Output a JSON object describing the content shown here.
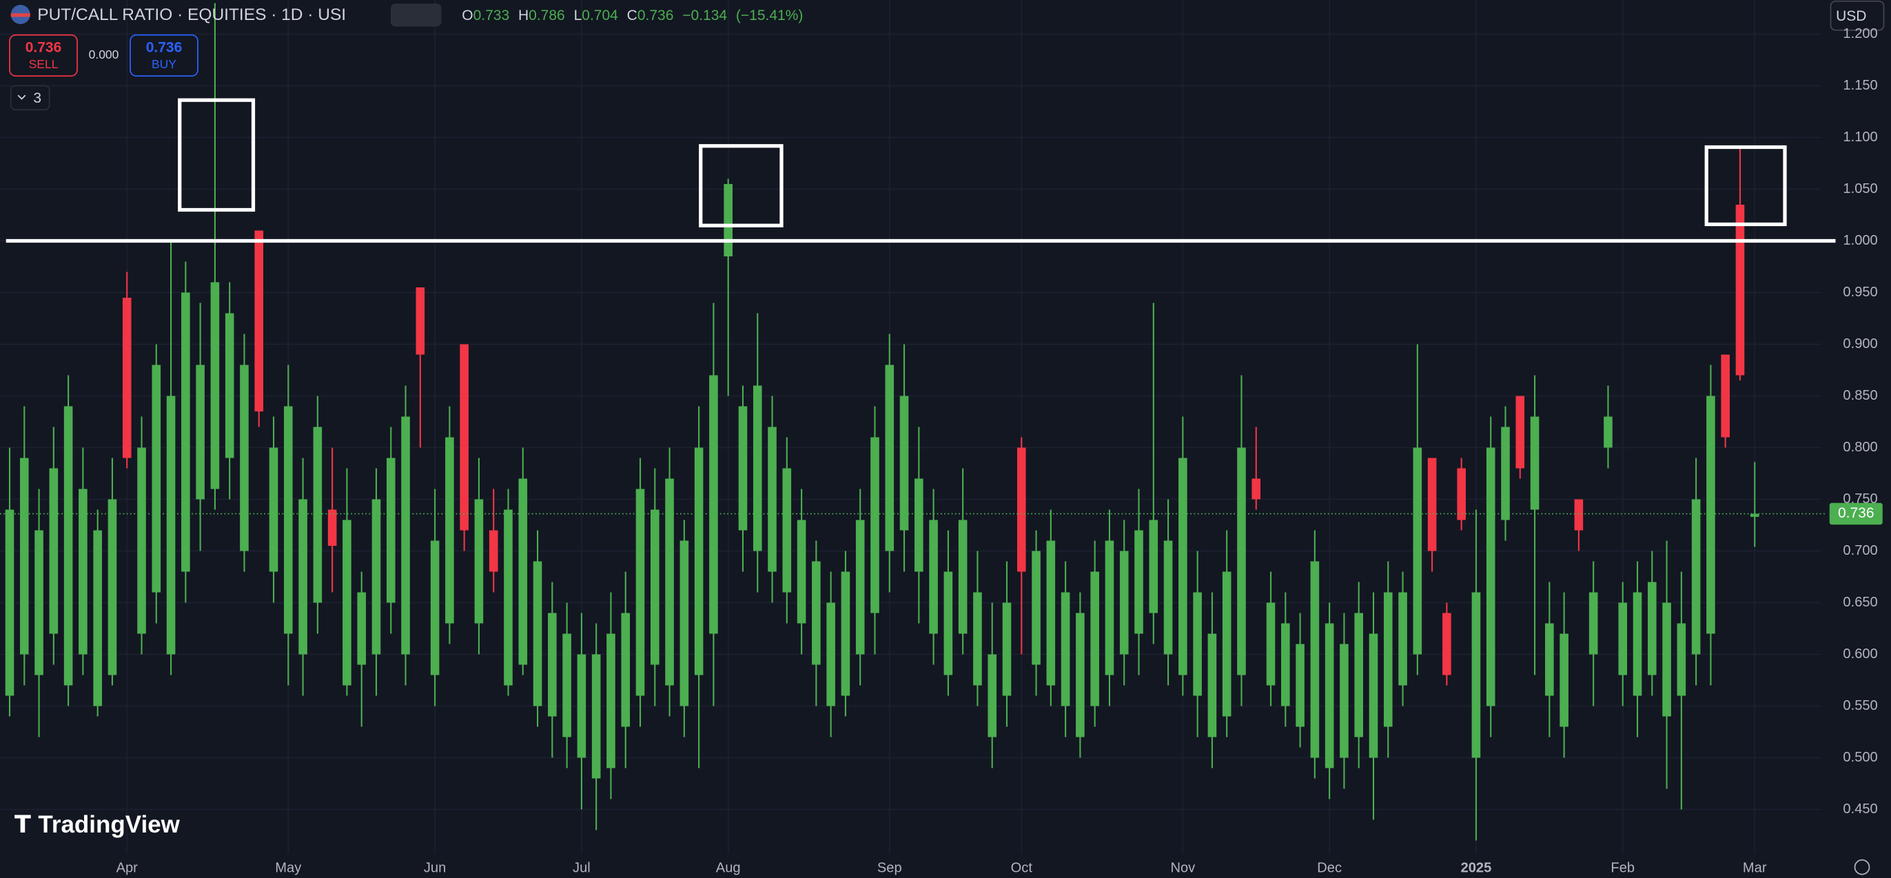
{
  "header": {
    "title": "PUT/CALL RATIO · EQUITIES · 1D · USI",
    "ohlc_labels": [
      "O",
      "H",
      "L",
      "C"
    ],
    "change": {
      "value": -0.134,
      "label": "−0.134"
    },
    "change_pct": {
      "value": -15.41,
      "label": "(−15.41%)"
    },
    "sell_price": "0.736",
    "sell": "SELL",
    "spread": "0.000",
    "buy_price": "0.736",
    "buy": "BUY",
    "indicators": "3",
    "currency": "USD",
    "brand": "TradingView"
  },
  "chart_data": {
    "type": "candlestick",
    "up_color": "#4caf50",
    "down_color": "#f23645",
    "hline": 1.0,
    "hline_color": "#ffffff",
    "ylim": [
      0.407,
      1.233
    ],
    "yticks": [
      {
        "value": 0.45,
        "label": "0.450"
      },
      {
        "value": 0.5,
        "label": "0.500"
      },
      {
        "value": 0.55,
        "label": "0.550"
      },
      {
        "value": 0.6,
        "label": "0.600"
      },
      {
        "value": 0.65,
        "label": "0.650"
      },
      {
        "value": 0.7,
        "label": "0.700"
      },
      {
        "value": 0.75,
        "label": "0.750"
      },
      {
        "value": 0.8,
        "label": "0.800"
      },
      {
        "value": 0.85,
        "label": "0.850"
      },
      {
        "value": 0.9,
        "label": "0.900"
      },
      {
        "value": 0.95,
        "label": "0.950"
      },
      {
        "value": 1.0,
        "label": "1.000"
      },
      {
        "value": 1.05,
        "label": "1.050"
      },
      {
        "value": 1.1,
        "label": "1.100"
      },
      {
        "value": 1.15,
        "label": "1.150"
      },
      {
        "value": 1.2,
        "label": "1.200"
      }
    ],
    "categories": [
      null,
      null,
      null,
      null,
      null,
      null,
      null,
      null,
      "Apr",
      null,
      null,
      null,
      null,
      null,
      null,
      null,
      null,
      null,
      null,
      "May",
      null,
      null,
      null,
      null,
      null,
      null,
      null,
      null,
      null,
      "Jun",
      null,
      null,
      null,
      null,
      null,
      null,
      null,
      null,
      null,
      "Jul",
      null,
      null,
      null,
      null,
      null,
      null,
      null,
      null,
      null,
      "Aug",
      null,
      null,
      null,
      null,
      null,
      null,
      null,
      null,
      null,
      null,
      "Sep",
      null,
      null,
      null,
      null,
      null,
      null,
      null,
      null,
      "Oct",
      null,
      null,
      null,
      null,
      null,
      null,
      null,
      null,
      null,
      null,
      "Nov",
      null,
      null,
      null,
      null,
      null,
      null,
      null,
      null,
      null,
      "Dec",
      null,
      null,
      null,
      null,
      null,
      null,
      null,
      null,
      null,
      "2025",
      null,
      null,
      null,
      null,
      null,
      null,
      null,
      null,
      null,
      "Feb",
      null,
      null,
      null,
      null,
      null,
      null,
      null,
      null,
      "Mar"
    ],
    "open": [
      0.56,
      0.6,
      0.58,
      0.62,
      0.57,
      0.6,
      0.55,
      0.58,
      0.945,
      0.62,
      0.66,
      0.6,
      0.68,
      0.75,
      0.76,
      0.79,
      0.7,
      1.01,
      0.68,
      0.62,
      0.6,
      0.65,
      0.74,
      0.57,
      0.59,
      0.6,
      0.65,
      0.6,
      0.955,
      0.58,
      0.63,
      0.9,
      0.63,
      0.72,
      0.57,
      0.59,
      0.55,
      0.54,
      0.52,
      0.5,
      0.48,
      0.49,
      0.53,
      0.56,
      0.59,
      0.57,
      0.55,
      0.58,
      0.62,
      0.985,
      0.72,
      0.7,
      0.68,
      0.66,
      0.63,
      0.59,
      0.55,
      0.56,
      0.6,
      0.64,
      0.7,
      0.72,
      0.68,
      0.62,
      0.58,
      0.62,
      0.57,
      0.52,
      0.56,
      0.8,
      0.59,
      0.57,
      0.55,
      0.52,
      0.55,
      0.58,
      0.6,
      0.62,
      0.64,
      0.6,
      0.58,
      0.56,
      0.52,
      0.54,
      0.58,
      0.77,
      0.57,
      0.55,
      0.53,
      0.5,
      0.49,
      0.5,
      0.52,
      0.5,
      0.53,
      0.57,
      0.6,
      0.79,
      0.64,
      0.78,
      0.5,
      0.55,
      0.73,
      0.85,
      0.74,
      0.56,
      0.53,
      0.75,
      0.6,
      0.8,
      0.58,
      0.56,
      0.58,
      0.54,
      0.56,
      0.6,
      0.62,
      0.89,
      1.035,
      0.733
    ],
    "high": [
      0.8,
      0.84,
      0.76,
      0.82,
      0.87,
      0.8,
      0.74,
      0.79,
      0.97,
      0.83,
      0.9,
      1.0,
      0.98,
      0.94,
      1.23,
      0.96,
      0.91,
      1.01,
      0.83,
      0.88,
      0.79,
      0.85,
      0.8,
      0.78,
      0.68,
      0.78,
      0.82,
      0.86,
      0.955,
      0.76,
      0.84,
      0.9,
      0.79,
      0.76,
      0.76,
      0.8,
      0.72,
      0.67,
      0.65,
      0.64,
      0.63,
      0.66,
      0.68,
      0.79,
      0.78,
      0.8,
      0.73,
      0.84,
      0.94,
      1.06,
      0.86,
      0.93,
      0.85,
      0.81,
      0.76,
      0.71,
      0.68,
      0.7,
      0.76,
      0.84,
      0.91,
      0.9,
      0.82,
      0.76,
      0.72,
      0.78,
      0.7,
      0.65,
      0.69,
      0.81,
      0.72,
      0.74,
      0.69,
      0.66,
      0.71,
      0.74,
      0.73,
      0.76,
      0.94,
      0.75,
      0.83,
      0.7,
      0.66,
      0.72,
      0.87,
      0.82,
      0.68,
      0.66,
      0.64,
      0.72,
      0.65,
      0.64,
      0.67,
      0.66,
      0.69,
      0.68,
      0.9,
      0.79,
      0.65,
      0.79,
      0.74,
      0.83,
      0.84,
      0.85,
      0.87,
      0.67,
      0.66,
      0.75,
      0.69,
      0.86,
      0.67,
      0.69,
      0.7,
      0.71,
      0.68,
      0.79,
      0.88,
      0.89,
      1.09,
      0.786
    ],
    "low": [
      0.54,
      0.57,
      0.52,
      0.59,
      0.55,
      0.58,
      0.54,
      0.57,
      0.78,
      0.6,
      0.63,
      0.58,
      0.65,
      0.7,
      0.74,
      0.75,
      0.68,
      0.82,
      0.65,
      0.57,
      0.56,
      0.62,
      0.66,
      0.56,
      0.53,
      0.56,
      0.62,
      0.57,
      0.8,
      0.55,
      0.61,
      0.7,
      0.6,
      0.66,
      0.56,
      0.58,
      0.53,
      0.5,
      0.49,
      0.45,
      0.43,
      0.46,
      0.49,
      0.53,
      0.55,
      0.54,
      0.52,
      0.49,
      0.55,
      0.85,
      0.68,
      0.66,
      0.65,
      0.63,
      0.6,
      0.55,
      0.52,
      0.54,
      0.57,
      0.6,
      0.66,
      0.68,
      0.63,
      0.59,
      0.56,
      0.6,
      0.55,
      0.49,
      0.53,
      0.6,
      0.56,
      0.55,
      0.52,
      0.5,
      0.53,
      0.55,
      0.57,
      0.58,
      0.61,
      0.57,
      0.56,
      0.52,
      0.49,
      0.52,
      0.55,
      0.74,
      0.55,
      0.53,
      0.51,
      0.48,
      0.46,
      0.47,
      0.49,
      0.44,
      0.5,
      0.55,
      0.58,
      0.68,
      0.57,
      0.72,
      0.42,
      0.52,
      0.71,
      0.77,
      0.58,
      0.52,
      0.5,
      0.7,
      0.55,
      0.78,
      0.55,
      0.52,
      0.56,
      0.47,
      0.45,
      0.57,
      0.57,
      0.8,
      0.865,
      0.704
    ],
    "close": [
      0.74,
      0.79,
      0.72,
      0.78,
      0.84,
      0.76,
      0.72,
      0.75,
      0.79,
      0.8,
      0.88,
      0.85,
      0.95,
      0.88,
      0.96,
      0.93,
      0.88,
      0.835,
      0.8,
      0.84,
      0.75,
      0.82,
      0.705,
      0.73,
      0.66,
      0.75,
      0.79,
      0.83,
      0.89,
      0.71,
      0.81,
      0.72,
      0.75,
      0.68,
      0.74,
      0.77,
      0.69,
      0.64,
      0.62,
      0.6,
      0.6,
      0.62,
      0.64,
      0.76,
      0.74,
      0.77,
      0.71,
      0.8,
      0.87,
      1.055,
      0.84,
      0.86,
      0.82,
      0.78,
      0.73,
      0.69,
      0.65,
      0.68,
      0.73,
      0.81,
      0.88,
      0.85,
      0.77,
      0.73,
      0.68,
      0.73,
      0.66,
      0.6,
      0.65,
      0.68,
      0.7,
      0.71,
      0.66,
      0.64,
      0.68,
      0.71,
      0.7,
      0.72,
      0.73,
      0.71,
      0.79,
      0.66,
      0.62,
      0.68,
      0.8,
      0.75,
      0.65,
      0.63,
      0.61,
      0.69,
      0.63,
      0.61,
      0.64,
      0.62,
      0.66,
      0.66,
      0.8,
      0.7,
      0.58,
      0.73,
      0.66,
      0.8,
      0.82,
      0.78,
      0.83,
      0.63,
      0.62,
      0.72,
      0.66,
      0.83,
      0.65,
      0.66,
      0.67,
      0.65,
      0.63,
      0.75,
      0.85,
      0.81,
      0.87,
      0.736
    ]
  }
}
